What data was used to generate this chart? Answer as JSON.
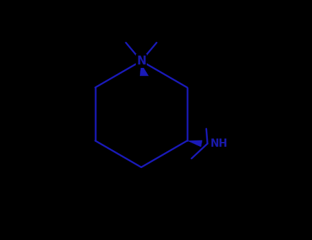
{
  "bg_color": "#000000",
  "line_color": "#1a1aaa",
  "line_width": 1.8,
  "font_size": 11,
  "font_color": "#1a1aaa",
  "font_weight": "bold",
  "figsize": [
    4.55,
    3.5
  ],
  "dpi": 100,
  "mol_color": "#1a1ab8"
}
